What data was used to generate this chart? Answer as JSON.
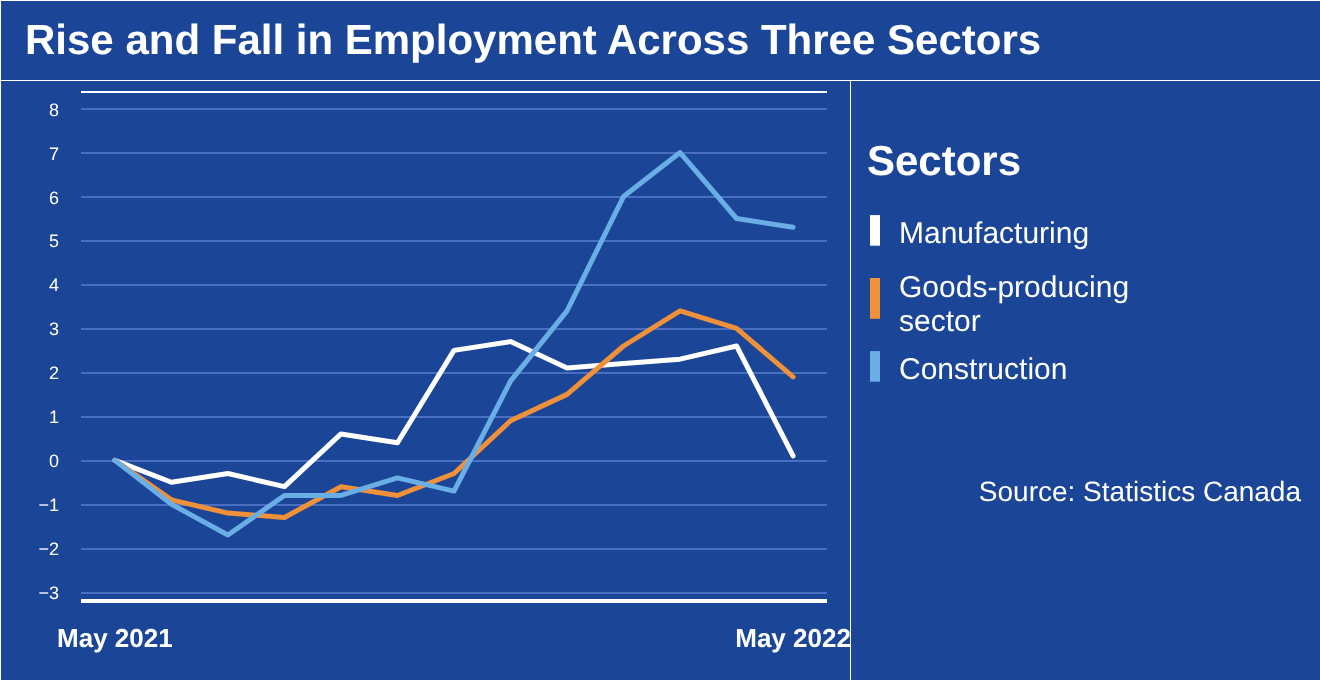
{
  "chart_data": {
    "type": "line",
    "title": "Rise and Fall in Employment Across Three Sectors",
    "legend_title": "Sectors",
    "categories": [
      "May 2021",
      null,
      null,
      null,
      null,
      null,
      null,
      null,
      null,
      null,
      null,
      null,
      "May 2022"
    ],
    "series": [
      {
        "name": "Manufacturing",
        "color": "#ffffff",
        "values": [
          0,
          -0.5,
          -0.3,
          -0.6,
          0.6,
          0.4,
          2.5,
          2.7,
          2.1,
          2.2,
          2.3,
          2.6,
          0.1
        ]
      },
      {
        "name": "Goods-producing sector",
        "color": "#f0913a",
        "values": [
          0,
          -0.9,
          -1.2,
          -1.3,
          -0.6,
          -0.8,
          -0.3,
          0.9,
          1.5,
          2.6,
          3.4,
          3.0,
          1.9
        ]
      },
      {
        "name": "Construction",
        "color": "#6aaee6",
        "values": [
          0,
          -1.0,
          -1.7,
          -0.8,
          -0.8,
          -0.4,
          -0.7,
          1.8,
          3.4,
          6.0,
          7.0,
          5.5,
          5.3
        ]
      }
    ],
    "ylim": [
      -3.2,
      8.4
    ],
    "yticks": [
      -3,
      -2,
      -1,
      0,
      1,
      2,
      3,
      4,
      5,
      6,
      7,
      8
    ],
    "grid": "y",
    "legend": "right",
    "marker": "none",
    "line_style": "solid",
    "annotations": [
      "Source: Statistics Canada"
    ]
  }
}
